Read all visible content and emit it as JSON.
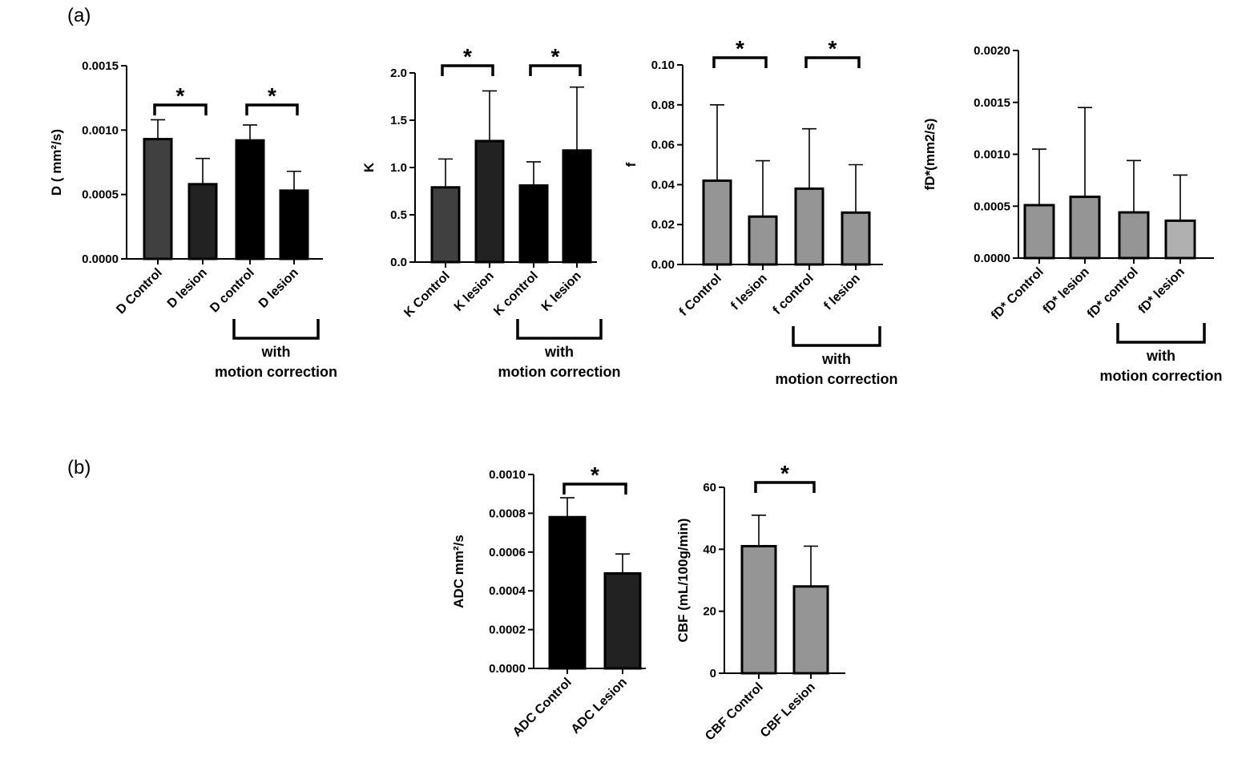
{
  "panel_labels": {
    "a": "(a)",
    "b": "(b)"
  },
  "chart_data": [
    {
      "type": "bar",
      "panel": "a",
      "categories": [
        "D Control",
        "D lesion",
        "D control",
        "D lesion"
      ],
      "values": [
        0.00093,
        0.00058,
        0.00092,
        0.00053
      ],
      "errors": [
        0.00015,
        0.0002,
        0.00012,
        0.00015
      ],
      "colors": [
        "#404040",
        "#222222",
        "#000000",
        "#000000"
      ],
      "ylabel": "D ( mm²/s)",
      "ylim": [
        0,
        0.0015
      ],
      "yticks": [
        0,
        0.0005,
        0.001,
        0.0015
      ],
      "ytick_labels": [
        "0.0000",
        "0.0005",
        "0.0010",
        "0.0015"
      ],
      "significance": [
        {
          "from": 0,
          "to": 1,
          "label": "*"
        },
        {
          "from": 2,
          "to": 3,
          "label": "*"
        }
      ],
      "group_note": {
        "from": 2,
        "to": 3,
        "line1": "with",
        "line2": "motion correction"
      }
    },
    {
      "type": "bar",
      "panel": "a",
      "categories": [
        "K Control",
        "K lesion",
        "K control",
        "K lesion"
      ],
      "values": [
        0.79,
        1.28,
        0.81,
        1.18
      ],
      "errors": [
        0.3,
        0.53,
        0.25,
        0.67
      ],
      "colors": [
        "#404040",
        "#222222",
        "#000000",
        "#000000"
      ],
      "ylabel": "K",
      "ylim": [
        0,
        2.0
      ],
      "yticks": [
        0,
        0.5,
        1.0,
        1.5,
        2.0
      ],
      "ytick_labels": [
        "0.0",
        "0.5",
        "1.0",
        "1.5",
        "2.0"
      ],
      "significance": [
        {
          "from": 0,
          "to": 1,
          "label": "*"
        },
        {
          "from": 2,
          "to": 3,
          "label": "*"
        }
      ],
      "group_note": {
        "from": 2,
        "to": 3,
        "line1": "with",
        "line2": "motion correction"
      }
    },
    {
      "type": "bar",
      "panel": "a",
      "categories": [
        "f Control",
        "f lesion",
        "f control",
        "f lesion"
      ],
      "values": [
        0.042,
        0.024,
        0.038,
        0.026
      ],
      "errors": [
        0.038,
        0.028,
        0.03,
        0.024
      ],
      "colors": [
        "#959595",
        "#959595",
        "#959595",
        "#959595"
      ],
      "ylabel": "f",
      "ylim": [
        0,
        0.1
      ],
      "yticks": [
        0,
        0.02,
        0.04,
        0.06,
        0.08,
        0.1
      ],
      "ytick_labels": [
        "0.00",
        "0.02",
        "0.04",
        "0.06",
        "0.08",
        "0.10"
      ],
      "significance": [
        {
          "from": 0,
          "to": 1,
          "label": "*"
        },
        {
          "from": 2,
          "to": 3,
          "label": "*"
        }
      ],
      "group_note": {
        "from": 2,
        "to": 3,
        "line1": "with",
        "line2": "motion correction"
      }
    },
    {
      "type": "bar",
      "panel": "a",
      "categories": [
        "fD* Control",
        "fD* lesion",
        "fD* control",
        "fD* lesion"
      ],
      "values": [
        0.00051,
        0.00059,
        0.00044,
        0.00036
      ],
      "errors": [
        0.00054,
        0.00086,
        0.0005,
        0.00044
      ],
      "colors": [
        "#959595",
        "#959595",
        "#959595",
        "#b0b0b0"
      ],
      "ylabel": "fD*(mm2/s)",
      "ylim": [
        0,
        0.002
      ],
      "yticks": [
        0,
        0.0005,
        0.001,
        0.0015,
        0.002
      ],
      "ytick_labels": [
        "0.0000",
        "0.0005",
        "0.0010",
        "0.0015",
        "0.0020"
      ],
      "significance": [],
      "group_note": {
        "from": 2,
        "to": 3,
        "line1": "with",
        "line2": "motion correction"
      }
    },
    {
      "type": "bar",
      "panel": "b",
      "categories": [
        "ADC Control",
        "ADC Lesion"
      ],
      "values": [
        0.00078,
        0.00049
      ],
      "errors": [
        0.0001,
        0.0001
      ],
      "colors": [
        "#000000",
        "#222222"
      ],
      "ylabel": "ADC  mm²/s",
      "ylim": [
        0,
        0.001
      ],
      "yticks": [
        0,
        0.0002,
        0.0004,
        0.0006,
        0.0008,
        0.001
      ],
      "ytick_labels": [
        "0.0000",
        "0.0002",
        "0.0004",
        "0.0006",
        "0.0008",
        "0.0010"
      ],
      "significance": [
        {
          "from": 0,
          "to": 1,
          "label": "*"
        }
      ],
      "group_note": null
    },
    {
      "type": "bar",
      "panel": "b",
      "categories": [
        "CBF Control",
        "CBF Lesion"
      ],
      "values": [
        41,
        28
      ],
      "errors": [
        10,
        13
      ],
      "colors": [
        "#959595",
        "#959595"
      ],
      "ylabel": "CBF (mL/100g/min)",
      "ylim": [
        0,
        60
      ],
      "yticks": [
        0,
        20,
        40,
        60
      ],
      "ytick_labels": [
        "0",
        "20",
        "40",
        "60"
      ],
      "significance": [
        {
          "from": 0,
          "to": 1,
          "label": "*"
        }
      ],
      "group_note": null
    }
  ]
}
